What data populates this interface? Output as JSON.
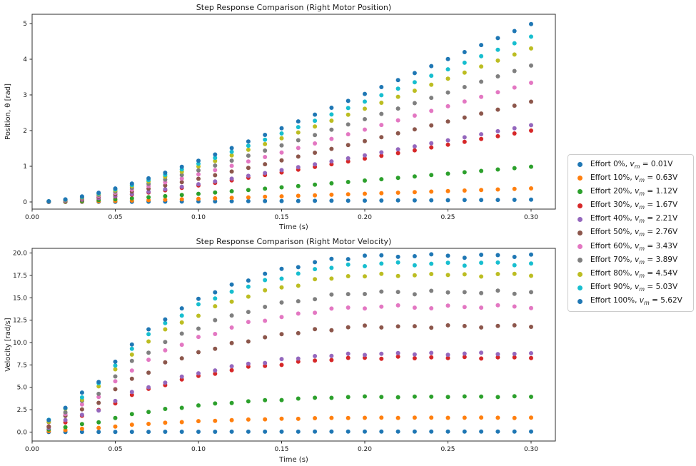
{
  "window": {
    "background": "#ffffff"
  },
  "legend": {
    "symbol_base": "v",
    "symbol_sub": "m",
    "separator": ", ",
    "equals": " = ",
    "items": [
      {
        "effort": "Effort 0%",
        "voltage": "0.01V",
        "color": "#1f77b4"
      },
      {
        "effort": "Effort 10%",
        "voltage": "0.63V",
        "color": "#ff7f0e"
      },
      {
        "effort": "Effort 20%",
        "voltage": "1.12V",
        "color": "#2ca02c"
      },
      {
        "effort": "Effort 30%",
        "voltage": "1.67V",
        "color": "#d62728"
      },
      {
        "effort": "Effort 40%",
        "voltage": "2.21V",
        "color": "#9467bd"
      },
      {
        "effort": "Effort 50%",
        "voltage": "2.76V",
        "color": "#8c564b"
      },
      {
        "effort": "Effort 60%",
        "voltage": "3.43V",
        "color": "#e377c2"
      },
      {
        "effort": "Effort 70%",
        "voltage": "3.89V",
        "color": "#7f7f7f"
      },
      {
        "effort": "Effort 80%",
        "voltage": "4.54V",
        "color": "#bcbd22"
      },
      {
        "effort": "Effort 90%",
        "voltage": "5.03V",
        "color": "#17becf"
      },
      {
        "effort": "Effort 100%",
        "voltage": "5.62V",
        "color": "#1f77b4"
      }
    ]
  },
  "chart_data": [
    {
      "type": "scatter",
      "title": "Step Response Comparison (Right Motor Position)",
      "xlabel": "Time (s)",
      "ylabel": "Position, θ [rad]",
      "xlim": [
        0.0,
        0.3146
      ],
      "ylim": [
        -0.2,
        5.26
      ],
      "grid": false,
      "xtick_values": [
        0.0,
        0.05,
        0.1,
        0.15,
        0.2,
        0.25,
        0.3
      ],
      "xtick_labels": [
        "0.00",
        "0.05",
        "0.10",
        "0.15",
        "0.20",
        "0.25",
        "0.30"
      ],
      "ytick_values": [
        0,
        1,
        2,
        3,
        4,
        5
      ],
      "ytick_labels": [
        "0",
        "1",
        "2",
        "3",
        "4",
        "5"
      ],
      "x": [
        0.01,
        0.02,
        0.03,
        0.04,
        0.05,
        0.06,
        0.07,
        0.08,
        0.09,
        0.1,
        0.11,
        0.12,
        0.13,
        0.14,
        0.15,
        0.16,
        0.17,
        0.18,
        0.19,
        0.2,
        0.21,
        0.22,
        0.23,
        0.24,
        0.25,
        0.26,
        0.27,
        0.28,
        0.29,
        0.3
      ],
      "model": "position[i] = ramp_rate_rad_per_s * ramp_fraction[i]",
      "ramp_fraction": [
        0.001,
        0.0037,
        0.0078,
        0.0131,
        0.0192,
        0.0261,
        0.0336,
        0.0416,
        0.0499,
        0.0586,
        0.0675,
        0.0767,
        0.086,
        0.0954,
        0.1049,
        0.1146,
        0.1243,
        0.134,
        0.1438,
        0.1537,
        0.1635,
        0.1734,
        0.1834,
        0.1933,
        0.2032,
        0.2132,
        0.2232,
        0.2331,
        0.2431,
        0.2531
      ],
      "series": [
        {
          "name": "Effort 0%, vm = 0.01V",
          "color": "#1f77b4",
          "ramp_rate_rad_per_s": 0.25
        },
        {
          "name": "Effort 10%, vm = 0.63V",
          "color": "#ff7f0e",
          "ramp_rate_rad_per_s": 1.5
        },
        {
          "name": "Effort 20%, vm = 1.12V",
          "color": "#2ca02c",
          "ramp_rate_rad_per_s": 3.9
        },
        {
          "name": "Effort 30%, vm = 1.67V",
          "color": "#d62728",
          "ramp_rate_rad_per_s": 7.9
        },
        {
          "name": "Effort 40%, vm = 2.21V",
          "color": "#9467bd",
          "ramp_rate_rad_per_s": 8.5
        },
        {
          "name": "Effort 50%, vm = 2.76V",
          "color": "#8c564b",
          "ramp_rate_rad_per_s": 11.1
        },
        {
          "name": "Effort 60%, vm = 3.43V",
          "color": "#e377c2",
          "ramp_rate_rad_per_s": 13.2
        },
        {
          "name": "Effort 70%, vm = 3.89V",
          "color": "#7f7f7f",
          "ramp_rate_rad_per_s": 15.1
        },
        {
          "name": "Effort 80%, vm = 4.54V",
          "color": "#bcbd22",
          "ramp_rate_rad_per_s": 17.0
        },
        {
          "name": "Effort 90%, vm = 5.03V",
          "color": "#17becf",
          "ramp_rate_rad_per_s": 18.3
        },
        {
          "name": "Effort 100%, vm = 5.62V",
          "color": "#1f77b4",
          "ramp_rate_rad_per_s": 19.7
        }
      ]
    },
    {
      "type": "scatter",
      "title": "Step Response Comparison (Right Motor Velocity)",
      "xlabel": "Time (s)",
      "ylabel": "Velocity [rad/s]",
      "xlim": [
        0.0,
        0.3146
      ],
      "ylim": [
        -1.0,
        20.52
      ],
      "grid": false,
      "xtick_values": [
        0.0,
        0.05,
        0.1,
        0.15,
        0.2,
        0.25,
        0.3
      ],
      "xtick_labels": [
        "0.00",
        "0.05",
        "0.10",
        "0.15",
        "0.20",
        "0.25",
        "0.30"
      ],
      "ytick_values": [
        0,
        2.5,
        5,
        7.5,
        10,
        12.5,
        15,
        17.5,
        20
      ],
      "ytick_labels": [
        "0.0",
        "2.5",
        "5.0",
        "7.5",
        "10.0",
        "12.5",
        "15.0",
        "17.5",
        "20.0"
      ],
      "x": [
        0.01,
        0.02,
        0.03,
        0.04,
        0.05,
        0.06,
        0.07,
        0.08,
        0.09,
        0.1,
        0.11,
        0.12,
        0.13,
        0.14,
        0.15,
        0.16,
        0.17,
        0.18,
        0.19,
        0.2,
        0.21,
        0.22,
        0.23,
        0.24,
        0.25,
        0.26,
        0.27,
        0.28,
        0.29,
        0.3
      ],
      "model": "velocity[i] = steady_state_rad_per_s * rise_fraction[i] + jitter[(i + 7*series_index) % 30] * jitter_amplitude * min(1, steady_state_rad_per_s/12)",
      "rise_fraction": [
        0.065,
        0.145,
        0.215,
        0.285,
        0.395,
        0.5,
        0.575,
        0.645,
        0.7,
        0.75,
        0.795,
        0.83,
        0.868,
        0.895,
        0.918,
        0.94,
        0.963,
        0.978,
        0.988,
        0.995,
        0.998,
        1.0,
        0.996,
        1.0,
        1.002,
        0.997,
        1.0,
        1.003,
        0.998,
        1.0
      ],
      "jitter": [
        0.3,
        -0.5,
        0.1,
        0.6,
        -0.2,
        -0.7,
        0.4,
        0.0,
        -0.4,
        0.5,
        0.2,
        -0.6,
        0.7,
        -0.1,
        0.3,
        -0.3,
        0.6,
        -0.5,
        0.1,
        0.4,
        -0.2,
        0.5,
        -0.7,
        0.2,
        0.6,
        -0.4,
        0.0,
        0.3,
        -0.6,
        0.4
      ],
      "jitter_amplitude": 0.25,
      "series": [
        {
          "name": "Effort 0%, vm = 0.01V",
          "color": "#1f77b4",
          "steady_state_rad_per_s": 0.05
        },
        {
          "name": "Effort 10%, vm = 0.63V",
          "color": "#ff7f0e",
          "steady_state_rad_per_s": 1.6
        },
        {
          "name": "Effort 20%, vm = 1.12V",
          "color": "#2ca02c",
          "steady_state_rad_per_s": 3.95
        },
        {
          "name": "Effort 30%, vm = 1.67V",
          "color": "#d62728",
          "steady_state_rad_per_s": 8.3
        },
        {
          "name": "Effort 40%, vm = 2.21V",
          "color": "#9467bd",
          "steady_state_rad_per_s": 8.75
        },
        {
          "name": "Effort 50%, vm = 2.76V",
          "color": "#8c564b",
          "steady_state_rad_per_s": 11.8
        },
        {
          "name": "Effort 60%, vm = 3.43V",
          "color": "#e377c2",
          "steady_state_rad_per_s": 14.0
        },
        {
          "name": "Effort 70%, vm = 3.89V",
          "color": "#7f7f7f",
          "steady_state_rad_per_s": 15.6
        },
        {
          "name": "Effort 80%, vm = 4.54V",
          "color": "#bcbd22",
          "steady_state_rad_per_s": 17.55
        },
        {
          "name": "Effort 90%, vm = 5.03V",
          "color": "#17becf",
          "steady_state_rad_per_s": 18.8
        },
        {
          "name": "Effort 100%, vm = 5.62V",
          "color": "#1f77b4",
          "steady_state_rad_per_s": 19.7
        }
      ]
    }
  ]
}
